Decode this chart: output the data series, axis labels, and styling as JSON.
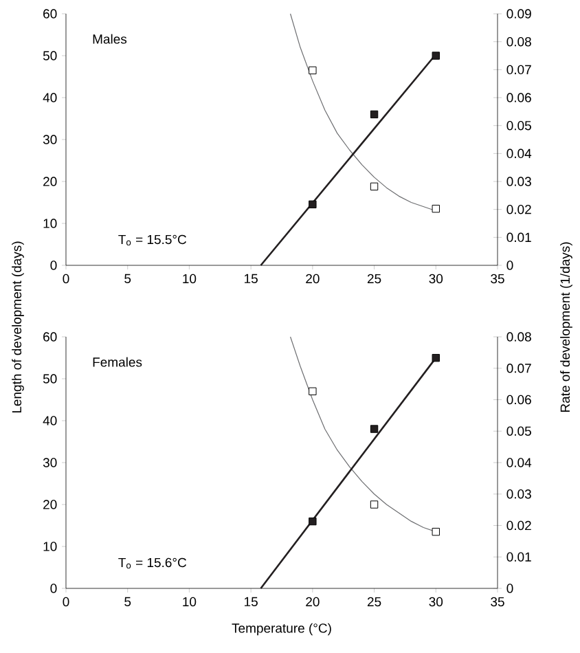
{
  "chart_data": [
    {
      "type": "scatter",
      "title": "Males",
      "ylabel": "Length of development (days)",
      "y2label": "Rate of development (1/days)",
      "annotations": [
        "T$_{o}$ = 15.5°C"
      ],
      "xlim": [
        0,
        35
      ],
      "xticks": [
        0,
        5,
        10,
        15,
        20,
        25,
        30,
        35
      ],
      "ylim": [
        0,
        60
      ],
      "yticks": [
        0,
        10,
        20,
        30,
        40,
        50,
        60
      ],
      "y2lim": [
        0,
        0.09
      ],
      "y2ticks": [
        0,
        0.01,
        0.02,
        0.03,
        0.04,
        0.05,
        0.06,
        0.07,
        0.08,
        0.09
      ],
      "grid": false,
      "series": [
        {
          "marker": "square",
          "color": "#ffffff",
          "x": [
            20,
            25,
            30
          ],
          "values": [
            46.5,
            18.8,
            13.5
          ]
        },
        {
          "marker": "square",
          "color": "#231f20",
          "axis": "y2",
          "x": [
            20,
            25,
            30
          ],
          "values": [
            0.0218,
            0.054,
            0.075
          ]
        },
        {
          "type": "line",
          "marker": "none",
          "color": "#231f20",
          "axis": "y2",
          "x": [
            15.8,
            30
          ],
          "values": [
            0,
            0.0755
          ]
        },
        {
          "type": "line",
          "marker": "none",
          "color": "#6d6e71",
          "x": [
            18.2,
            19,
            20,
            21,
            22,
            23,
            24,
            25,
            26,
            27,
            28,
            29,
            30
          ],
          "values": [
            60,
            52,
            44,
            37,
            31.5,
            27.5,
            24,
            21,
            18.5,
            16.5,
            15,
            14,
            13
          ]
        }
      ]
    },
    {
      "type": "scatter",
      "title": "Females",
      "xlabel": "Temperature (°C)",
      "annotations": [
        "T$_{o}$ = 15.6°C"
      ],
      "xlim": [
        0,
        35
      ],
      "xticks": [
        0,
        5,
        10,
        15,
        20,
        25,
        30,
        35
      ],
      "ylim": [
        0,
        60
      ],
      "yticks": [
        0,
        10,
        20,
        30,
        40,
        50,
        60
      ],
      "y2lim": [
        0,
        0.08
      ],
      "y2ticks": [
        0,
        0.01,
        0.02,
        0.03,
        0.04,
        0.05,
        0.06,
        0.07,
        0.08
      ],
      "grid": false,
      "series": [
        {
          "marker": "square",
          "color": "#ffffff",
          "x": [
            20,
            25,
            30
          ],
          "values": [
            47,
            20,
            13.5
          ]
        },
        {
          "marker": "square",
          "color": "#231f20",
          "axis": "y2",
          "x": [
            20,
            25,
            30
          ],
          "values": [
            0.0213,
            0.0507,
            0.0733
          ]
        },
        {
          "type": "line",
          "marker": "none",
          "color": "#231f20",
          "axis": "y2",
          "x": [
            15.8,
            30
          ],
          "values": [
            0,
            0.0733
          ]
        },
        {
          "type": "line",
          "marker": "none",
          "color": "#6d6e71",
          "x": [
            18.2,
            19,
            20,
            21,
            22,
            23,
            24,
            25,
            26,
            27,
            28,
            29,
            30
          ],
          "values": [
            60,
            53,
            45,
            38,
            33,
            29,
            25.5,
            22.5,
            20,
            18,
            16,
            14.5,
            13.5
          ]
        }
      ]
    }
  ]
}
